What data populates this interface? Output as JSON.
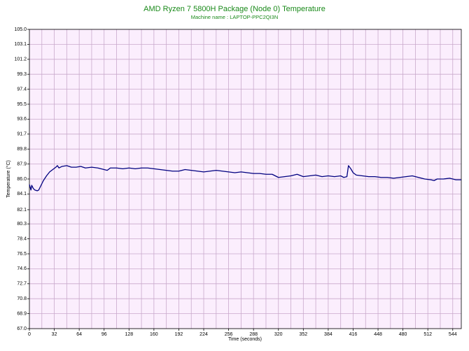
{
  "chart_data": {
    "type": "line",
    "title": "AMD Ryzen 7 5800H Package (Node 0) Temperature",
    "subtitle": "Machine name : LAPTOP-PPC2QI3N",
    "x_label": "Time (seconds)",
    "y_label": "Temperature (°C)",
    "x": [
      0,
      2,
      3,
      5,
      7,
      10,
      12,
      15,
      18,
      22,
      26,
      30,
      34,
      36,
      38,
      42,
      48,
      54,
      60,
      66,
      72,
      80,
      88,
      96,
      100,
      104,
      112,
      120,
      128,
      136,
      144,
      152,
      160,
      168,
      176,
      184,
      192,
      200,
      208,
      216,
      224,
      232,
      240,
      248,
      256,
      264,
      272,
      280,
      288,
      296,
      304,
      312,
      320,
      328,
      336,
      344,
      352,
      360,
      368,
      376,
      384,
      392,
      400,
      404,
      408,
      410,
      413,
      416,
      420,
      428,
      436,
      444,
      452,
      460,
      468,
      476,
      484,
      492,
      500,
      508,
      516,
      520,
      524,
      532,
      540,
      548,
      555
    ],
    "series": [
      {
        "name": "Temperature",
        "color": "#000080",
        "values": [
          85.3,
          84.6,
          85.2,
          84.8,
          84.6,
          84.5,
          84.6,
          85.2,
          85.8,
          86.4,
          86.9,
          87.2,
          87.5,
          87.7,
          87.4,
          87.6,
          87.7,
          87.5,
          87.5,
          87.6,
          87.4,
          87.5,
          87.4,
          87.2,
          87.1,
          87.4,
          87.4,
          87.3,
          87.4,
          87.3,
          87.4,
          87.4,
          87.3,
          87.2,
          87.1,
          87.0,
          87.0,
          87.2,
          87.1,
          87.0,
          86.9,
          87.0,
          87.1,
          87.0,
          86.9,
          86.8,
          86.9,
          86.8,
          86.7,
          86.7,
          86.6,
          86.6,
          86.2,
          86.3,
          86.4,
          86.6,
          86.3,
          86.4,
          86.5,
          86.3,
          86.4,
          86.3,
          86.4,
          86.2,
          86.3,
          87.7,
          87.3,
          86.8,
          86.5,
          86.4,
          86.3,
          86.3,
          86.2,
          86.2,
          86.1,
          86.2,
          86.3,
          86.4,
          86.2,
          86.0,
          85.9,
          85.8,
          86.0,
          86.0,
          86.1,
          85.9,
          85.9
        ]
      }
    ],
    "xlim": [
      0,
      555
    ],
    "xticks": [
      0,
      32,
      64,
      96,
      128,
      160,
      192,
      224,
      256,
      288,
      320,
      352,
      384,
      416,
      448,
      480,
      512,
      544
    ],
    "ylim": [
      67,
      105
    ],
    "yticks": [
      {
        "value": 67,
        "label": "67.0"
      },
      {
        "value": 68.9,
        "label": "68.9"
      },
      {
        "value": 70.8,
        "label": "70.8"
      },
      {
        "value": 72.7,
        "label": "72.7"
      },
      {
        "value": 74.6,
        "label": "74.6"
      },
      {
        "value": 76.5,
        "label": "76.5"
      },
      {
        "value": 78.4,
        "label": "78.4"
      },
      {
        "value": 80.3,
        "label": "80.3"
      },
      {
        "value": 82.1,
        "label": "82.1"
      },
      {
        "value": 84.1,
        "label": "84.1"
      },
      {
        "value": 86,
        "label": "86.0"
      },
      {
        "value": 87.9,
        "label": "87.9"
      },
      {
        "value": 89.8,
        "label": "89.8"
      },
      {
        "value": 91.7,
        "label": "91.7"
      },
      {
        "value": 93.6,
        "label": "93.6"
      },
      {
        "value": 95.5,
        "label": "95.5"
      },
      {
        "value": 97.4,
        "label": "97.4"
      },
      {
        "value": 99.3,
        "label": "99.3"
      },
      {
        "value": 101.2,
        "label": "101.2"
      },
      {
        "value": 103.1,
        "label": "103.1"
      },
      {
        "value": 105,
        "label": "105.0"
      }
    ],
    "grid": true,
    "title_color": "#1a8a1a"
  }
}
